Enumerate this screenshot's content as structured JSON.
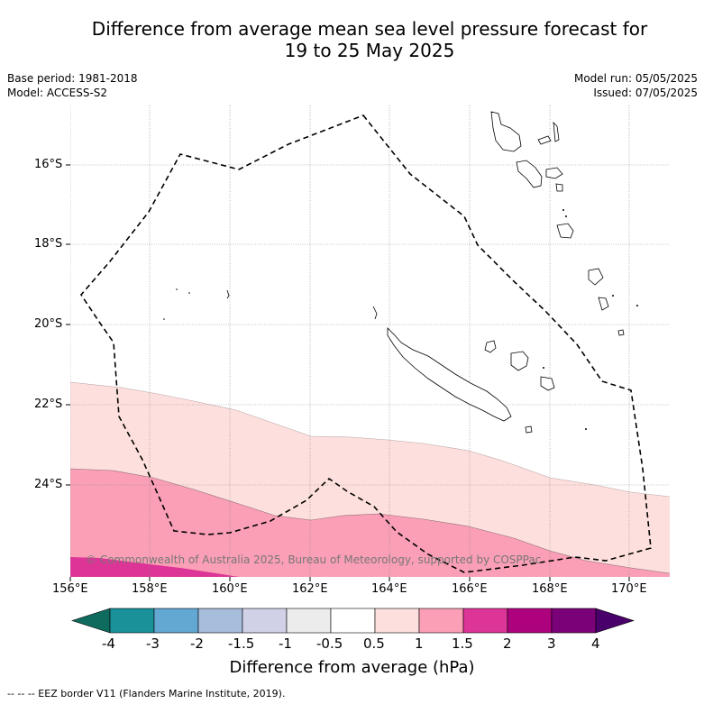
{
  "title": {
    "line1": "Difference from average mean sea level pressure forecast for",
    "line2": "19 to 25 May 2025"
  },
  "meta_left": {
    "base_period": "Base period: 1981-2018",
    "model": "Model: ACCESS-S2"
  },
  "meta_right": {
    "model_run": "Model run: 05/05/2025",
    "issued": "Issued: 07/05/2025"
  },
  "axes": {
    "lat_labels": [
      "16°S",
      "18°S",
      "20°S",
      "22°S",
      "24°S"
    ],
    "lon_labels": [
      "156°E",
      "158°E",
      "160°E",
      "162°E",
      "164°E",
      "166°E",
      "168°E",
      "170°E"
    ]
  },
  "colorbar": {
    "title": "Difference from average (hPa)",
    "tick_labels": [
      "-4",
      "-3",
      "-2",
      "-1.5",
      "-1",
      "-0.5",
      "0.5",
      "1",
      "1.5",
      "2",
      "3",
      "4"
    ],
    "colors": [
      "#0f6b5e",
      "#1a9099",
      "#62a8d2",
      "#a6bddb",
      "#d0d1e6",
      "#ececec",
      "#ffffff",
      "#fde0dd",
      "#fa9fb5",
      "#dd3497",
      "#ae017e",
      "#7a0177",
      "#49006a"
    ]
  },
  "copyright": "© Commonwealth of Australia 2025, Bureau of Meteorology, supported by COSPPac",
  "footer": "-- -- -- EEZ border V11 (Flanders Marine Institute, 2019)."
}
